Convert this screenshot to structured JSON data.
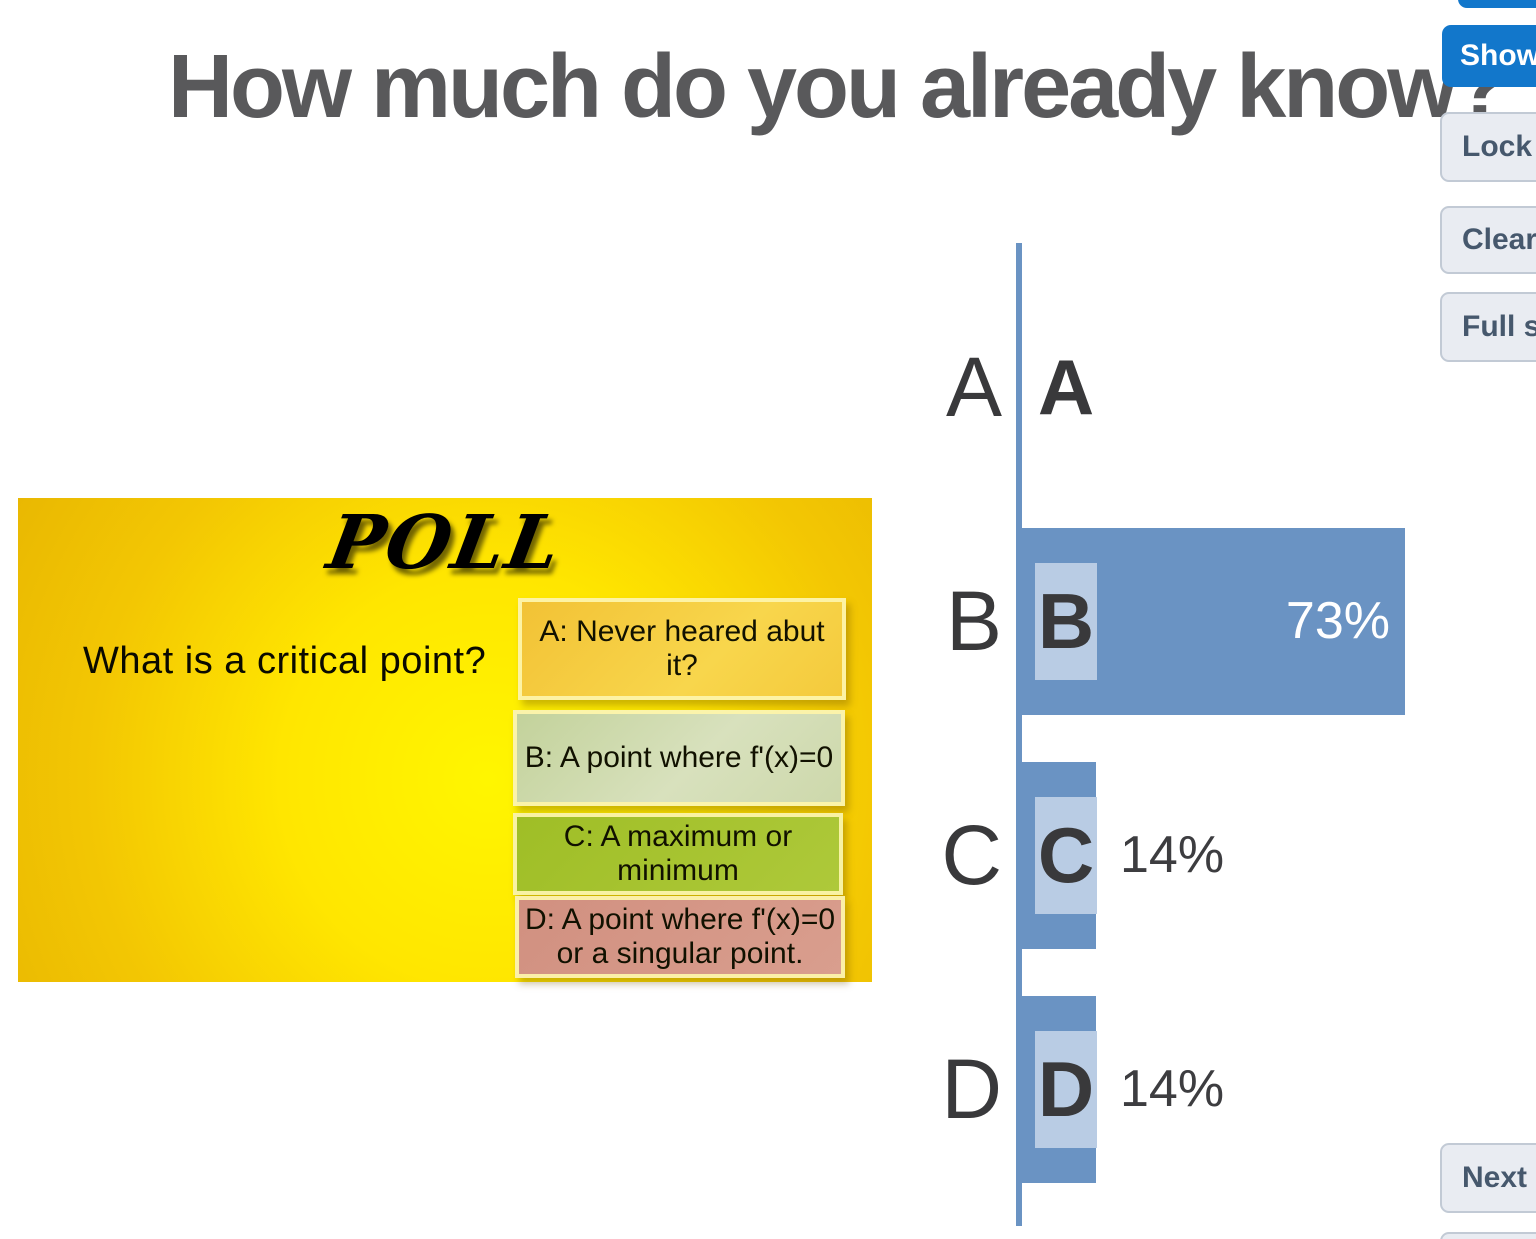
{
  "page": {
    "title": "How much do you already know?"
  },
  "slide": {
    "heading": "POLL",
    "question": "What is a critical point?",
    "options": [
      {
        "label": "A: Never heared abut it?",
        "bg": "#f5cc40"
      },
      {
        "label": "B: A point where f'(x)=0",
        "bg": "#cdd8a9"
      },
      {
        "label": "C: A maximum or minimum",
        "bg": "#a6c42e"
      },
      {
        "label": "D: A point where f'(x)=0\nor a singular point.",
        "bg": "#d59584"
      }
    ]
  },
  "chart_data": {
    "type": "bar",
    "orientation": "horizontal",
    "categories": [
      "A",
      "B",
      "C",
      "D"
    ],
    "values": [
      0,
      73,
      14,
      14
    ],
    "value_labels": [
      "",
      "73%",
      "14%",
      "14%"
    ],
    "xlim": [
      0,
      100
    ],
    "grid": false,
    "legend": false,
    "bar_color": "#6a93c3",
    "chip_color": "#b9cce4",
    "axis_color": "#6a93c3"
  },
  "controls": {
    "show_label": "Show",
    "lock_label": "Lock",
    "clear_label": "Clear",
    "fullscreen_label": "Full screen",
    "next_label": "Next"
  },
  "colors": {
    "title_text": "#59595b",
    "accent_blue_button": "#1277cb",
    "gray_button_bg": "#e9ecf2",
    "gray_button_text": "#46586d"
  }
}
